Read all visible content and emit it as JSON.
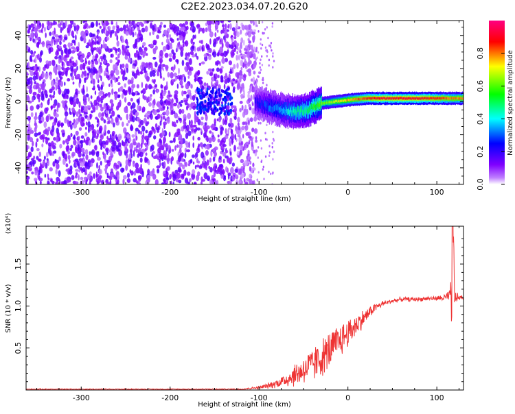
{
  "figure": {
    "title": "C2E2.2023.034.07.20.G20"
  },
  "chart_data": [
    {
      "type": "heatmap",
      "xlabel": "Height of straight line (km)",
      "ylabel": "Frequency (Hz)",
      "xlim": [
        -362,
        130
      ],
      "ylim": [
        -50,
        49
      ],
      "xticks": [
        -300,
        -200,
        -100,
        0,
        100
      ],
      "yticks": [
        -40,
        -20,
        0,
        20,
        40
      ],
      "colorbar": {
        "label": "Normalized spectral amplitude",
        "range": [
          0,
          1
        ],
        "ticks": [
          "0.0",
          "0.2",
          "0.4",
          "0.6",
          "0.8"
        ],
        "colormap": "rainbow (purple-blue-cyan-green-yellow-red-magenta)",
        "colors": [
          "#ffffff",
          "#7f00ff",
          "#0000ff",
          "#00ffff",
          "#00ff00",
          "#ffff00",
          "#ff0000",
          "#ff0080"
        ]
      },
      "description_regions": {
        "noise_region_x": [
          -362,
          -103
        ],
        "signal_ridge": {
          "x": [
            -105,
            -90,
            -75,
            -60,
            -45,
            -30,
            -15,
            0,
            20,
            40,
            60,
            80,
            100,
            120,
            130
          ],
          "freq_hz": [
            0,
            -3,
            -5,
            -6,
            -5,
            -1,
            0,
            1,
            2,
            2,
            2,
            2,
            2,
            2,
            2
          ],
          "amplitude": [
            0.2,
            0.3,
            0.35,
            0.45,
            0.5,
            0.6,
            0.7,
            0.75,
            0.85,
            0.9,
            0.9,
            0.9,
            0.85,
            0.8,
            0.8
          ]
        }
      }
    },
    {
      "type": "line",
      "xlabel": "Height of straight line (km)",
      "ylabel": "SNR (10 * v/v)",
      "yscale_label": "(x10⁴)",
      "xlim": [
        -362,
        130
      ],
      "ylim": [
        0,
        1.95
      ],
      "xticks": [
        -300,
        -200,
        -100,
        0,
        100
      ],
      "yticks": [
        "0.5",
        "1.0",
        "1.5"
      ],
      "series": [
        {
          "color": "#ee3333",
          "x": [
            -362,
            -300,
            -200,
            -120,
            -100,
            -90,
            -80,
            -70,
            -60,
            -50,
            -40,
            -30,
            -20,
            -10,
            0,
            10,
            20,
            30,
            40,
            50,
            60,
            70,
            80,
            90,
            100,
            110,
            115,
            118,
            120,
            125,
            130
          ],
          "values": [
            0.01,
            0.01,
            0.01,
            0.01,
            0.03,
            0.05,
            0.08,
            0.12,
            0.18,
            0.24,
            0.3,
            0.38,
            0.48,
            0.58,
            0.68,
            0.78,
            0.88,
            0.98,
            1.03,
            1.06,
            1.08,
            1.08,
            1.08,
            1.09,
            1.09,
            1.1,
            1.12,
            1.9,
            1.1,
            1.1,
            1.1
          ],
          "noise_amplitude": [
            0.003,
            0.003,
            0.003,
            0.004,
            0.01,
            0.02,
            0.03,
            0.05,
            0.08,
            0.1,
            0.12,
            0.13,
            0.13,
            0.12,
            0.1,
            0.08,
            0.05,
            0.03,
            0.02,
            0.015,
            0.015,
            0.015,
            0.015,
            0.015,
            0.015,
            0.03,
            0.05,
            0.2,
            0.05,
            0.02,
            0.02
          ]
        }
      ]
    }
  ]
}
